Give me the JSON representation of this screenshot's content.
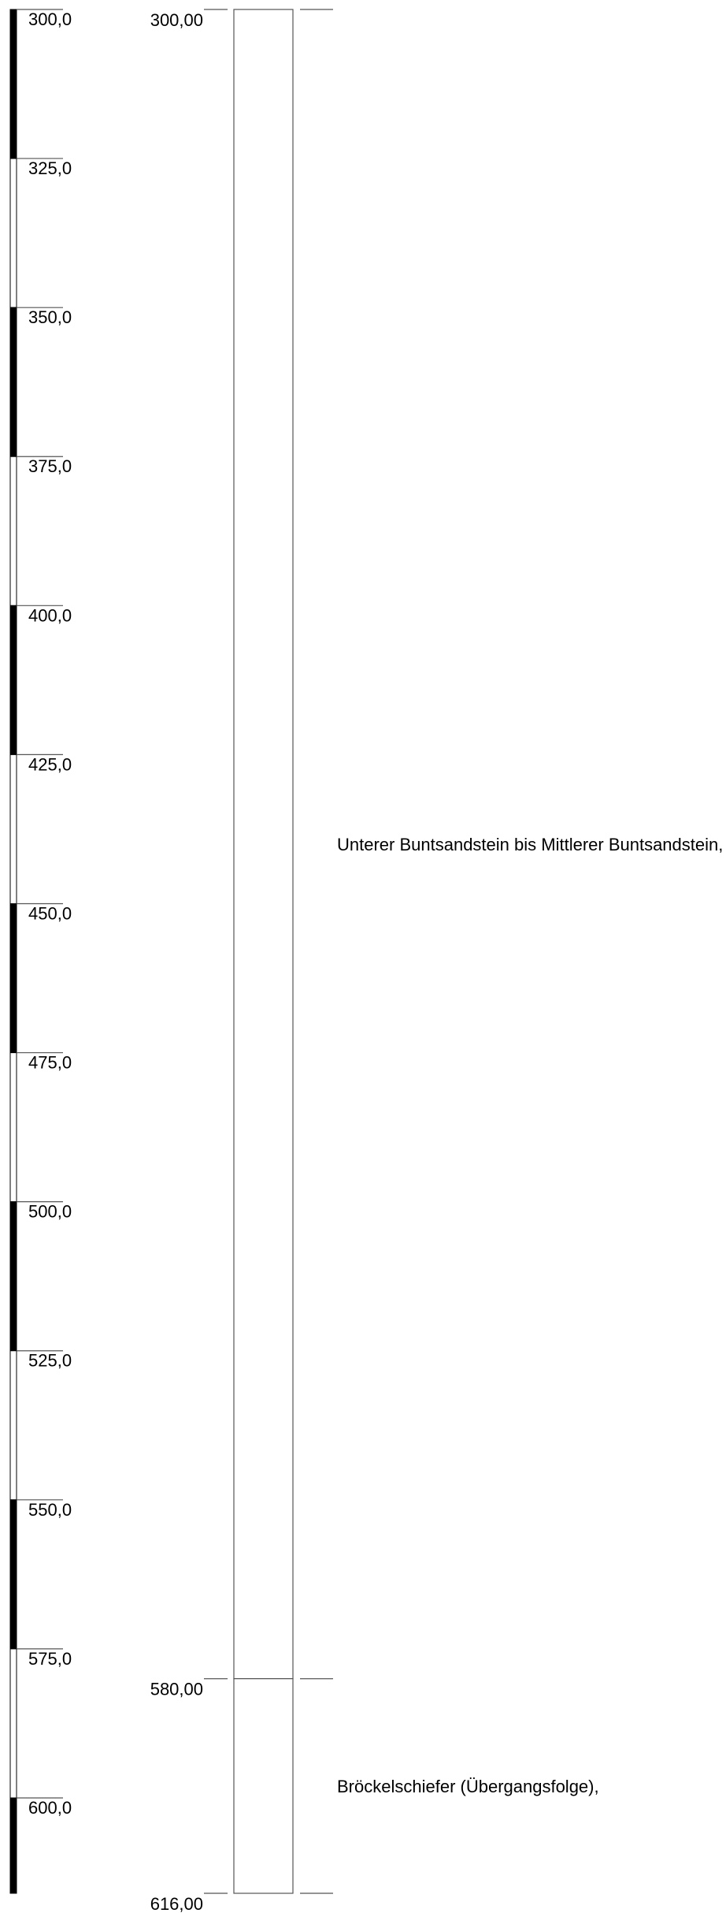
{
  "depth_scale": {
    "unit_step": 25,
    "range": [
      300,
      616
    ],
    "ticks": [
      {
        "depth": 300,
        "label": "300,0"
      },
      {
        "depth": 325,
        "label": "325,0"
      },
      {
        "depth": 350,
        "label": "350,0"
      },
      {
        "depth": 375,
        "label": "375,0"
      },
      {
        "depth": 400,
        "label": "400,0"
      },
      {
        "depth": 425,
        "label": "425,0"
      },
      {
        "depth": 450,
        "label": "450,0"
      },
      {
        "depth": 475,
        "label": "475,0"
      },
      {
        "depth": 500,
        "label": "500,0"
      },
      {
        "depth": 525,
        "label": "525,0"
      },
      {
        "depth": 550,
        "label": "550,0"
      },
      {
        "depth": 575,
        "label": "575,0"
      },
      {
        "depth": 600,
        "label": "600,0"
      }
    ],
    "bar_colors": [
      "#000000",
      "#ffffff"
    ]
  },
  "layers": [
    {
      "top": 300,
      "bottom": 580,
      "top_label": "300,00",
      "description": "Unterer Buntsandstein bis Mittlerer Buntsandstein,"
    },
    {
      "top": 580,
      "bottom": 616,
      "top_label": "580,00",
      "description": "Bröckelschiefer (Übergangsfolge),"
    }
  ],
  "base_label": "616,00",
  "colors": {
    "line": "#555555",
    "ink": "#000000"
  }
}
